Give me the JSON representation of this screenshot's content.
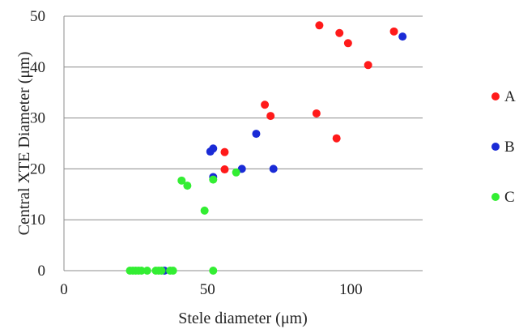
{
  "chart_data": {
    "type": "scatter",
    "title": "",
    "xlabel": "Stele diameter (μm)",
    "ylabel": "Central XTE Diameter (μm)",
    "xlim": [
      0,
      125
    ],
    "ylim": [
      0,
      50
    ],
    "x_ticks": [
      0,
      50,
      100
    ],
    "y_ticks": [
      0,
      10,
      20,
      30,
      40,
      50
    ],
    "grid": "horizontal",
    "legend_position": "right",
    "series": [
      {
        "name": "A",
        "color": "#ff1a1a",
        "points": [
          [
            89,
            48.2
          ],
          [
            96,
            46.7
          ],
          [
            99,
            44.7
          ],
          [
            115,
            47.0
          ],
          [
            106,
            40.4
          ],
          [
            70,
            32.6
          ],
          [
            72,
            30.4
          ],
          [
            88,
            30.9
          ],
          [
            95,
            26.0
          ],
          [
            56,
            23.3
          ],
          [
            56,
            19.9
          ]
        ]
      },
      {
        "name": "B",
        "color": "#1a2bd6",
        "points": [
          [
            118,
            46.0
          ],
          [
            67,
            26.9
          ],
          [
            51,
            23.4
          ],
          [
            52,
            24.0
          ],
          [
            52,
            18.4
          ],
          [
            62,
            20.0
          ],
          [
            73,
            20.0
          ],
          [
            35,
            0
          ]
        ]
      },
      {
        "name": "C",
        "color": "#33ee33",
        "points": [
          [
            41,
            17.7
          ],
          [
            43,
            16.7
          ],
          [
            52,
            17.9
          ],
          [
            60,
            19.3
          ],
          [
            49,
            11.8
          ],
          [
            23,
            0
          ],
          [
            24,
            0
          ],
          [
            25,
            0
          ],
          [
            26,
            0
          ],
          [
            27,
            0
          ],
          [
            29,
            0
          ],
          [
            32,
            0
          ],
          [
            33,
            0
          ],
          [
            34,
            0
          ],
          [
            37,
            0
          ],
          [
            38,
            0
          ],
          [
            52,
            0
          ]
        ]
      }
    ]
  }
}
